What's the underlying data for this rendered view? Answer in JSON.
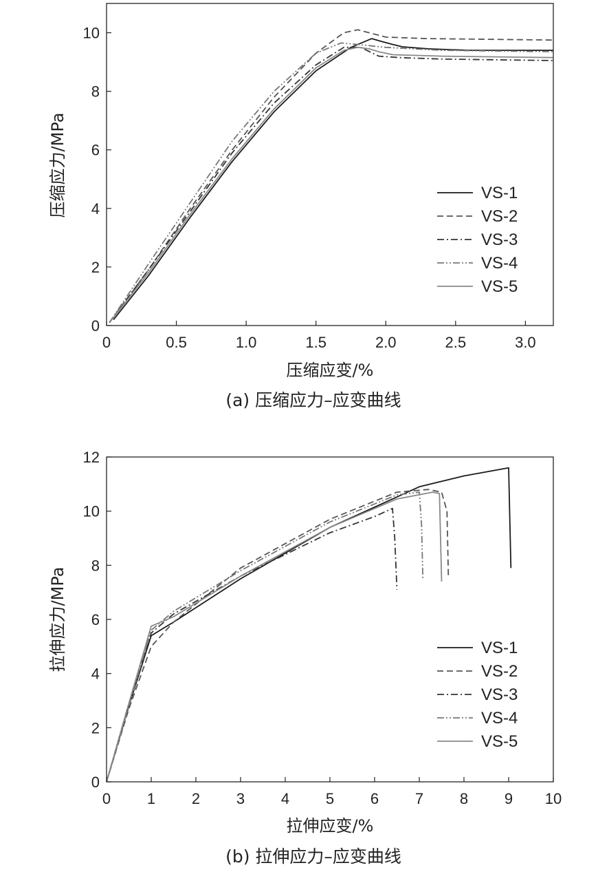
{
  "chart_data": [
    {
      "type": "line",
      "caption": "(a) 压缩应力–应变曲线",
      "xlabel": "压缩应变/%",
      "ylabel": "压缩应力/MPa",
      "xlim": [
        0,
        3.2
      ],
      "ylim": [
        0,
        11
      ],
      "xticks": [
        0,
        0.5,
        1.0,
        1.5,
        2.0,
        2.5,
        3.0
      ],
      "xtick_labels": [
        "0",
        "0.5",
        "1.0",
        "1.5",
        "2.0",
        "2.5",
        "3.0"
      ],
      "yticks": [
        0,
        2,
        4,
        6,
        8,
        10
      ],
      "ytick_labels": [
        "0",
        "2",
        "4",
        "6",
        "8",
        "10"
      ],
      "grid": false,
      "legend_position": "lower-right",
      "series": [
        {
          "name": "VS-1",
          "style": "solid",
          "color": "#1a1a1a",
          "x": [
            0.05,
            0.3,
            0.6,
            0.9,
            1.2,
            1.5,
            1.75,
            1.9,
            1.97,
            2.05,
            2.12,
            2.3,
            2.6,
            3.2
          ],
          "y": [
            0.2,
            1.7,
            3.7,
            5.6,
            7.3,
            8.7,
            9.5,
            9.8,
            9.7,
            9.6,
            9.52,
            9.45,
            9.4,
            9.4
          ]
        },
        {
          "name": "VS-2",
          "style": "dashed",
          "color": "#555555",
          "x": [
            0.02,
            0.3,
            0.6,
            0.9,
            1.2,
            1.5,
            1.7,
            1.8,
            1.88,
            2.0,
            2.3,
            3.2
          ],
          "y": [
            0.1,
            1.9,
            4.0,
            6.0,
            7.8,
            9.3,
            10.0,
            10.1,
            10.0,
            9.85,
            9.8,
            9.75
          ]
        },
        {
          "name": "VS-3",
          "style": "dashdot",
          "color": "#333333",
          "x": [
            0.02,
            0.3,
            0.6,
            0.9,
            1.2,
            1.5,
            1.7,
            1.82,
            1.95,
            2.1,
            2.4,
            3.2
          ],
          "y": [
            0.1,
            1.9,
            3.9,
            5.9,
            7.6,
            8.9,
            9.5,
            9.5,
            9.2,
            9.15,
            9.1,
            9.05
          ]
        },
        {
          "name": "VS-4",
          "style": "dashdotdot",
          "color": "#777777",
          "x": [
            0.02,
            0.3,
            0.6,
            0.9,
            1.2,
            1.5,
            1.68,
            1.8,
            2.0,
            2.4,
            3.2
          ],
          "y": [
            0.1,
            2.1,
            4.2,
            6.3,
            8.0,
            9.3,
            9.65,
            9.6,
            9.5,
            9.4,
            9.35
          ]
        },
        {
          "name": "VS-5",
          "style": "solid",
          "color": "#888888",
          "x": [
            0.03,
            0.3,
            0.6,
            0.9,
            1.2,
            1.5,
            1.7,
            1.8,
            1.88,
            1.95,
            2.05,
            2.4,
            3.2
          ],
          "y": [
            0.15,
            1.8,
            3.8,
            5.7,
            7.4,
            8.8,
            9.4,
            9.5,
            9.45,
            9.35,
            9.25,
            9.2,
            9.15
          ]
        }
      ]
    },
    {
      "type": "line",
      "caption": "(b) 拉伸应力–应变曲线",
      "xlabel": "拉伸应变/%",
      "ylabel": "拉伸应力/MPa",
      "xlim": [
        0,
        10
      ],
      "ylim": [
        0,
        12
      ],
      "xticks": [
        0,
        1,
        2,
        3,
        4,
        5,
        6,
        7,
        8,
        9,
        10
      ],
      "xtick_labels": [
        "0",
        "1",
        "2",
        "3",
        "4",
        "5",
        "6",
        "7",
        "8",
        "9",
        "10"
      ],
      "yticks": [
        0,
        2,
        4,
        6,
        8,
        10,
        12
      ],
      "ytick_labels": [
        "0",
        "2",
        "4",
        "6",
        "8",
        "10",
        "12"
      ],
      "grid": false,
      "legend_position": "lower-right",
      "series": [
        {
          "name": "VS-1",
          "style": "solid",
          "color": "#1a1a1a",
          "x": [
            0,
            0.5,
            1.0,
            1.5,
            3,
            5,
            7,
            8,
            9.0,
            9.05
          ],
          "y": [
            0,
            2.8,
            5.4,
            5.9,
            7.5,
            9.4,
            10.9,
            11.3,
            11.6,
            7.9
          ]
        },
        {
          "name": "VS-2",
          "style": "dashed",
          "color": "#555555",
          "x": [
            0,
            0.5,
            1.0,
            1.5,
            3,
            5,
            6.5,
            7.2,
            7.5,
            7.62,
            7.65
          ],
          "y": [
            0,
            2.7,
            5.0,
            5.9,
            7.9,
            9.7,
            10.7,
            10.8,
            10.7,
            10.0,
            7.6
          ]
        },
        {
          "name": "VS-3",
          "style": "dashdot",
          "color": "#333333",
          "x": [
            0,
            0.5,
            1.0,
            1.5,
            3,
            5,
            6.0,
            6.4,
            6.45,
            6.5
          ],
          "y": [
            0,
            2.9,
            5.5,
            6.2,
            7.6,
            9.2,
            9.8,
            10.1,
            9.0,
            7.1
          ]
        },
        {
          "name": "VS-4",
          "style": "dashdotdot",
          "color": "#777777",
          "x": [
            0,
            0.5,
            1.0,
            1.5,
            3,
            5,
            6.5,
            7.0,
            7.05,
            7.08
          ],
          "y": [
            0,
            2.8,
            5.6,
            6.3,
            7.8,
            9.6,
            10.6,
            10.7,
            9.5,
            7.5
          ]
        },
        {
          "name": "VS-5",
          "style": "solid",
          "color": "#888888",
          "x": [
            0,
            0.5,
            1.0,
            1.5,
            3,
            5,
            6.5,
            7.3,
            7.45,
            7.5
          ],
          "y": [
            0,
            2.9,
            5.75,
            6.1,
            7.6,
            9.4,
            10.45,
            10.7,
            10.65,
            7.4
          ]
        }
      ]
    }
  ]
}
